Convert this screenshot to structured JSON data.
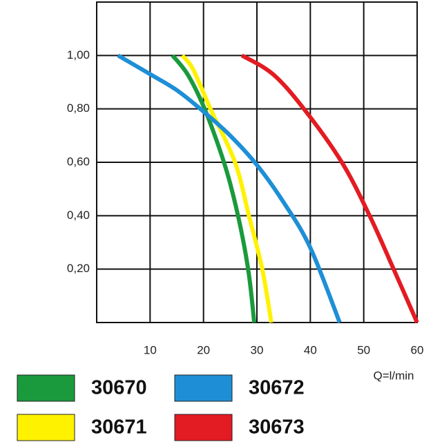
{
  "chart_data": {
    "type": "line",
    "xlabel": "Q=l/min",
    "xlim": [
      0,
      60
    ],
    "xticks": [
      10,
      20,
      30,
      40,
      50,
      60
    ],
    "ylim": [
      0,
      1.2
    ],
    "yticks": [
      {
        "value": 0.2,
        "label": "0,20"
      },
      {
        "value": 0.4,
        "label": "0,40"
      },
      {
        "value": 0.6,
        "label": "0,60"
      },
      {
        "value": 0.8,
        "label": "0,80"
      },
      {
        "value": 1.0,
        "label": "1,00"
      }
    ],
    "grid": true,
    "series": [
      {
        "name": "30670",
        "color": "#1a9a3c",
        "x": [
          14.2,
          17,
          20,
          23,
          25,
          27,
          28.5,
          29.5
        ],
        "values": [
          1.0,
          0.93,
          0.81,
          0.65,
          0.52,
          0.35,
          0.18,
          0
        ]
      },
      {
        "name": "30671",
        "color": "#fff200",
        "x": [
          16,
          18,
          21.3,
          25.9,
          28.5,
          31,
          32.7
        ],
        "values": [
          1.0,
          0.95,
          0.8,
          0.6,
          0.4,
          0.2,
          0
        ]
      },
      {
        "name": "30672",
        "color": "#1e8fd6",
        "x": [
          4,
          10,
          15,
          20,
          25,
          30,
          35,
          40,
          45.5
        ],
        "values": [
          1.0,
          0.93,
          0.87,
          0.79,
          0.7,
          0.59,
          0.45,
          0.28,
          0
        ]
      },
      {
        "name": "30673",
        "color": "#e31b23",
        "x": [
          27.2,
          33,
          38.8,
          45.9,
          51.1,
          55.6,
          60
        ],
        "values": [
          1.0,
          0.93,
          0.8,
          0.6,
          0.4,
          0.2,
          0
        ]
      }
    ]
  }
}
